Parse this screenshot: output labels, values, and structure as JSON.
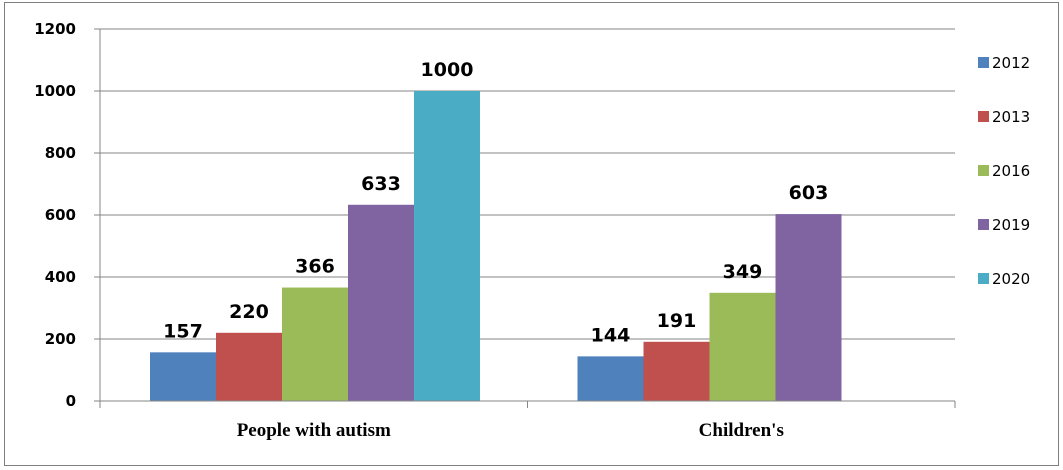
{
  "chart_data": {
    "type": "bar",
    "categories": [
      "People with autism",
      "Children's"
    ],
    "series": [
      {
        "name": "2012",
        "values": [
          157,
          144
        ],
        "color": "#4f81bd"
      },
      {
        "name": "2013",
        "values": [
          220,
          191
        ],
        "color": "#c0504d"
      },
      {
        "name": "2016",
        "values": [
          366,
          349
        ],
        "color": "#9bbb59"
      },
      {
        "name": "2019",
        "values": [
          633,
          603
        ],
        "color": "#8064a2"
      },
      {
        "name": "2020",
        "values": [
          1000,
          null
        ],
        "color": "#4bacc6"
      }
    ],
    "ylim": [
      0,
      1200
    ],
    "yticks": [
      "0",
      "200",
      "400",
      "600",
      "800",
      "1000",
      "1200"
    ],
    "grid": true,
    "legend": "right",
    "title": "",
    "xlabel": "",
    "ylabel": ""
  }
}
